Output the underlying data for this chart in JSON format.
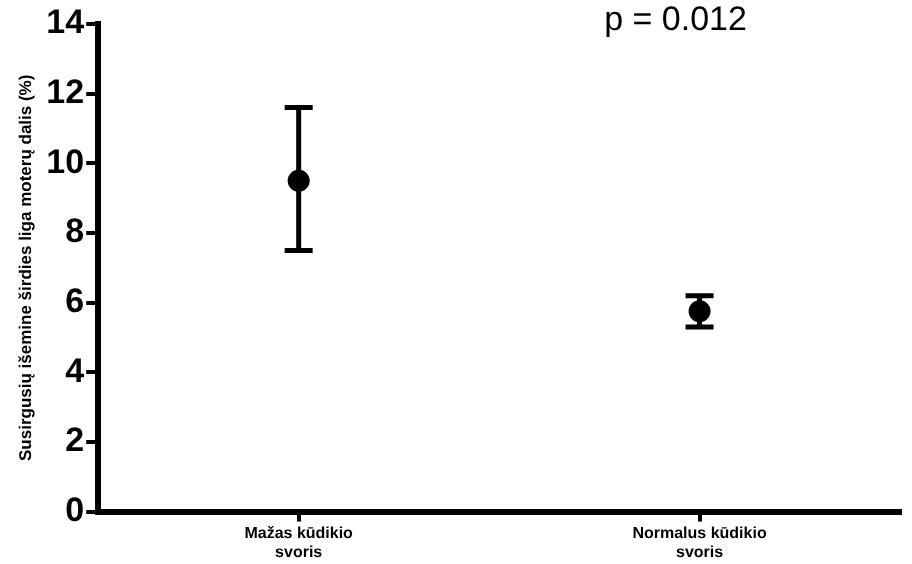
{
  "chart_data": {
    "type": "scatter",
    "ylabel": "Susirgusių išemine širdies liga moterų dalis (%)",
    "categories": [
      "Mažas kūdikio svoris",
      "Normalus kūdikio svoris"
    ],
    "series": [
      {
        "color": "#000000",
        "values": [
          9.5,
          5.75
        ],
        "errors": [
          [
            7.5,
            11.6
          ],
          [
            5.3,
            6.2
          ]
        ]
      }
    ],
    "ylim": [
      0,
      14
    ],
    "yticks": [
      0,
      2,
      4,
      6,
      8,
      10,
      12,
      14
    ],
    "grid": false,
    "legend": false,
    "marker": "circle",
    "annotations": [
      "p = 0.012"
    ]
  }
}
